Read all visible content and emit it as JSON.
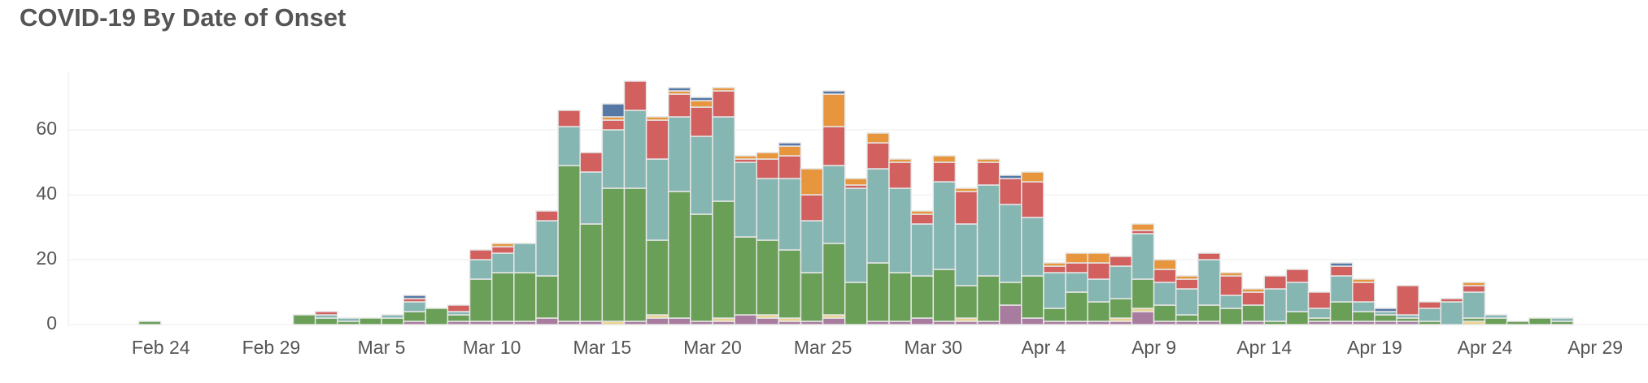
{
  "chart_data": {
    "type": "stacked_bar",
    "title": "COVID-19 By Date of Onset",
    "categories": [
      null,
      "Feb 24",
      null,
      null,
      null,
      null,
      "Feb 29",
      null,
      null,
      null,
      null,
      "Mar 5",
      null,
      null,
      null,
      null,
      "Mar 10",
      null,
      null,
      null,
      null,
      "Mar 15",
      null,
      null,
      null,
      null,
      "Mar 20",
      null,
      null,
      null,
      null,
      "Mar 25",
      null,
      null,
      null,
      null,
      "Mar 30",
      null,
      null,
      null,
      null,
      "Apr 4",
      null,
      null,
      null,
      null,
      "Apr 9",
      null,
      null,
      null,
      null,
      "Apr 14",
      null,
      null,
      null,
      null,
      "Apr 19",
      null,
      null,
      null,
      null,
      "Apr 24",
      null,
      null,
      null,
      null,
      "Apr 29"
    ],
    "series": [
      {
        "color": "#a87c9f",
        "values": [
          0,
          0,
          0,
          0,
          0,
          0,
          0,
          0,
          0,
          0,
          0,
          0,
          1,
          0,
          1,
          1,
          1,
          1,
          2,
          1,
          1,
          0,
          1,
          2,
          2,
          1,
          1,
          3,
          2,
          1,
          1,
          2,
          0,
          1,
          1,
          2,
          1,
          1,
          1,
          6,
          2,
          1,
          1,
          1,
          1,
          4,
          1,
          1,
          1,
          0,
          1,
          0,
          0,
          1,
          1,
          1,
          1,
          1,
          0,
          0,
          0,
          0,
          0,
          0,
          0,
          0,
          0
        ]
      },
      {
        "color": "#e9d38c",
        "values": [
          0,
          0,
          0,
          0,
          0,
          0,
          0,
          0,
          0,
          0,
          0,
          0,
          0,
          0,
          0,
          0,
          0,
          0,
          0,
          0,
          0,
          1,
          0,
          1,
          0,
          0,
          1,
          0,
          1,
          1,
          0,
          1,
          0,
          0,
          0,
          0,
          0,
          1,
          0,
          0,
          0,
          0,
          0,
          0,
          1,
          1,
          0,
          0,
          0,
          0,
          0,
          0,
          0,
          0,
          0,
          0,
          0,
          0,
          0,
          0,
          1,
          0,
          0,
          0,
          0,
          0,
          0
        ]
      },
      {
        "color": "#6a9f58",
        "values": [
          1,
          0,
          0,
          0,
          0,
          0,
          0,
          3,
          2,
          1,
          2,
          2,
          3,
          5,
          2,
          13,
          15,
          15,
          13,
          48,
          30,
          41,
          41,
          23,
          39,
          33,
          36,
          24,
          23,
          21,
          15,
          22,
          13,
          18,
          15,
          13,
          16,
          10,
          14,
          7,
          13,
          4,
          9,
          6,
          6,
          9,
          5,
          2,
          5,
          5,
          5,
          1,
          4,
          1,
          6,
          3,
          2,
          1,
          1,
          0,
          1,
          2,
          1,
          2,
          1,
          0,
          0
        ]
      },
      {
        "color": "#85b6b2",
        "values": [
          0,
          0,
          0,
          0,
          0,
          0,
          0,
          0,
          1,
          1,
          0,
          1,
          3,
          0,
          1,
          6,
          6,
          9,
          17,
          12,
          16,
          18,
          24,
          25,
          23,
          24,
          26,
          23,
          19,
          22,
          16,
          24,
          29,
          29,
          26,
          16,
          27,
          19,
          28,
          24,
          18,
          11,
          6,
          7,
          10,
          14,
          7,
          8,
          14,
          4,
          0,
          10,
          9,
          3,
          8,
          3,
          1,
          1,
          4,
          7,
          8,
          1,
          0,
          0,
          1,
          0,
          0
        ]
      },
      {
        "color": "#d1605e",
        "values": [
          0,
          0,
          0,
          0,
          0,
          0,
          0,
          0,
          1,
          0,
          0,
          0,
          1,
          0,
          2,
          3,
          2,
          0,
          3,
          5,
          6,
          3,
          9,
          12,
          7,
          9,
          8,
          1,
          6,
          7,
          8,
          12,
          1,
          8,
          8,
          3,
          6,
          10,
          7,
          8,
          11,
          2,
          3,
          5,
          3,
          1,
          4,
          3,
          2,
          6,
          4,
          4,
          4,
          5,
          3,
          6,
          0,
          9,
          2,
          1,
          2,
          0,
          0,
          0,
          0,
          0,
          0
        ]
      },
      {
        "color": "#e7963e",
        "values": [
          0,
          0,
          0,
          0,
          0,
          0,
          0,
          0,
          0,
          0,
          0,
          0,
          0,
          0,
          0,
          0,
          1,
          0,
          0,
          0,
          0,
          1,
          0,
          1,
          1,
          2,
          1,
          1,
          2,
          3,
          8,
          10,
          2,
          3,
          1,
          1,
          2,
          1,
          1,
          0,
          3,
          1,
          3,
          3,
          0,
          2,
          3,
          1,
          0,
          1,
          1,
          0,
          0,
          0,
          0,
          1,
          0,
          0,
          0,
          0,
          1,
          0,
          0,
          0,
          0,
          0,
          0
        ]
      },
      {
        "color": "#5778a4",
        "values": [
          0,
          0,
          0,
          0,
          0,
          0,
          0,
          0,
          0,
          0,
          0,
          0,
          1,
          0,
          0,
          0,
          0,
          0,
          0,
          0,
          0,
          4,
          0,
          0,
          1,
          1,
          0,
          0,
          0,
          1,
          0,
          1,
          0,
          0,
          0,
          0,
          0,
          0,
          0,
          1,
          0,
          0,
          0,
          0,
          0,
          0,
          0,
          0,
          0,
          0,
          0,
          0,
          0,
          0,
          1,
          0,
          1,
          0,
          0,
          0,
          0,
          0,
          0,
          0,
          0,
          0,
          0
        ]
      }
    ],
    "ylim": [
      0,
      78
    ],
    "yticks": [
      0,
      20,
      40,
      60
    ],
    "grid": true
  }
}
